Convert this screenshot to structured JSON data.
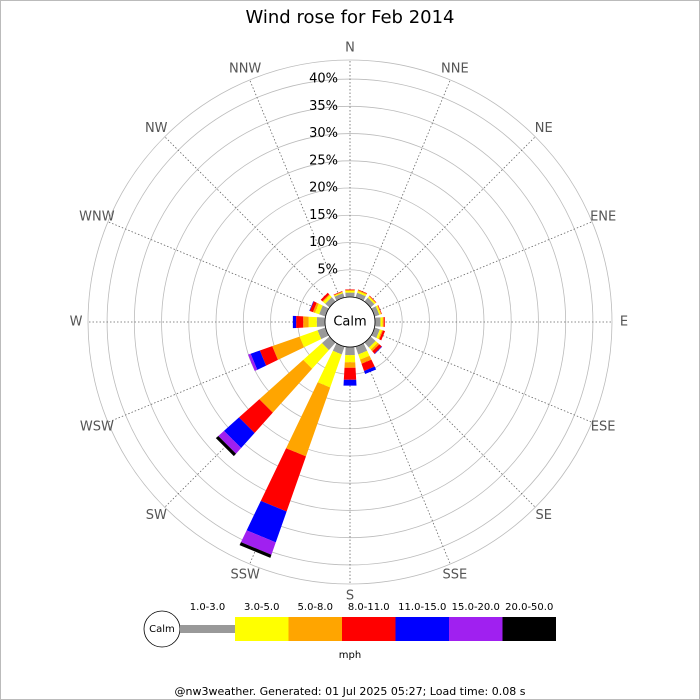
{
  "chart_data": {
    "type": "windrose",
    "title": "Wind rose for Feb 2014",
    "directions": [
      "N",
      "NNE",
      "NE",
      "ENE",
      "E",
      "ESE",
      "SE",
      "SSE",
      "S",
      "SSW",
      "SW",
      "WSW",
      "W",
      "WNW",
      "NW",
      "NNW"
    ],
    "rlim": [
      0,
      43.5
    ],
    "rticks": [
      {
        "value": 5,
        "label": "5%"
      },
      {
        "value": 10,
        "label": "10%"
      },
      {
        "value": 15,
        "label": "15%"
      },
      {
        "value": 20,
        "label": "20%"
      },
      {
        "value": 25,
        "label": "25%"
      },
      {
        "value": 30,
        "label": "30%"
      },
      {
        "value": 35,
        "label": "35%"
      },
      {
        "value": 40,
        "label": "40%"
      }
    ],
    "calm_label": "Calm",
    "unit": "mph",
    "series": [
      {
        "name": "1.0-3.0",
        "color": "#999999",
        "values": [
          0.8,
          0.9,
          0.9,
          0.9,
          1,
          1,
          1.2,
          1.5,
          1.5,
          1.5,
          1.8,
          1.5,
          1.5,
          1.2,
          1,
          0.8
        ]
      },
      {
        "name": "3.0-5.0",
        "color": "#ffff00",
        "values": [
          0.3,
          0.3,
          0.3,
          0.3,
          0.4,
          0.4,
          0.5,
          1,
          1.3,
          6.4,
          4.6,
          3.5,
          1.5,
          0.8,
          0.5,
          0.2
        ]
      },
      {
        "name": "5.0-8.0",
        "color": "#ffa500",
        "values": [
          0.2,
          0.2,
          0.1,
          0.1,
          0.2,
          0.2,
          0.4,
          0.8,
          1,
          13.4,
          10.8,
          5.3,
          1,
          0.4,
          0.2,
          0.1
        ]
      },
      {
        "name": "8.0-11.0",
        "color": "#ff0000",
        "values": [
          0.1,
          0.1,
          0.1,
          0.1,
          0.2,
          0.4,
          0.6,
          1.4,
          2.2,
          10.7,
          5,
          2.4,
          1.3,
          0.6,
          0.4,
          0.1
        ]
      },
      {
        "name": "11.0-15.0",
        "color": "#0000ff",
        "values": [
          0,
          0,
          0,
          0,
          0,
          0,
          0.1,
          0.6,
          1.1,
          6,
          3.7,
          1.8,
          0.6,
          0.1,
          0,
          0
        ]
      },
      {
        "name": "15.0-20.0",
        "color": "#a020f0",
        "values": [
          0,
          0,
          0,
          0,
          0,
          0,
          0,
          0,
          0,
          2.4,
          1.4,
          0.5,
          0,
          0,
          0,
          0
        ]
      },
      {
        "name": "20.0-50.0",
        "color": "#000000",
        "values": [
          0,
          0,
          0,
          0,
          0,
          0,
          0,
          0,
          0,
          0.6,
          0.6,
          0,
          0,
          0,
          0,
          0
        ]
      }
    ]
  },
  "footer": "@nw3weather. Generated: 01 Jul 2025 05:27; Load time: 0.08 s"
}
